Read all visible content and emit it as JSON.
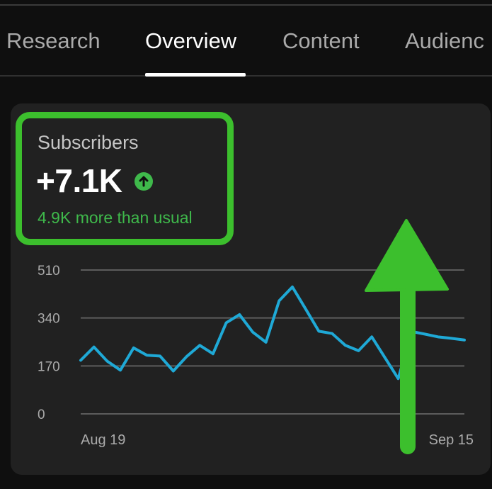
{
  "tabs": [
    {
      "label": "Research"
    },
    {
      "label": "Overview"
    },
    {
      "label": "Content"
    },
    {
      "label": "Audienc"
    }
  ],
  "active_tab": "Overview",
  "metric": {
    "label": "Subscribers",
    "value": "+7.1K",
    "comparison": "4.9K more than usual",
    "trend_icon": "arrow-up-circle-icon"
  },
  "colors": {
    "background": "#0f0f0f",
    "card": "#212121",
    "line": "#1fa9d6",
    "positive": "#3fb94b",
    "annotation": "#3cbf2d"
  },
  "chart_data": {
    "type": "line",
    "ytick_labels": [
      "510",
      "340",
      "170",
      "0"
    ],
    "y_ticks": [
      0,
      170,
      340,
      510
    ],
    "ylim": [
      0,
      510
    ],
    "x_tick_labels": [
      "Aug 19",
      "Sep 15"
    ],
    "x_tick_positions": [
      0,
      27
    ],
    "xlim": [
      -1,
      28
    ],
    "grid": true,
    "series": [
      {
        "x": [
          -1,
          0,
          1,
          2,
          3,
          4,
          5,
          6,
          7,
          8,
          9,
          10,
          11,
          12,
          13,
          14,
          15,
          16,
          17,
          18,
          19,
          20,
          21,
          22,
          23,
          24,
          25,
          26,
          27,
          28
        ],
        "values": [
          190,
          237,
          187,
          155,
          234,
          208,
          205,
          152,
          203,
          243,
          213,
          323,
          352,
          290,
          254,
          401,
          450,
          372,
          293,
          285,
          243,
          224,
          273,
          199,
          125,
          292,
          283,
          273,
          268,
          262
        ]
      }
    ]
  }
}
